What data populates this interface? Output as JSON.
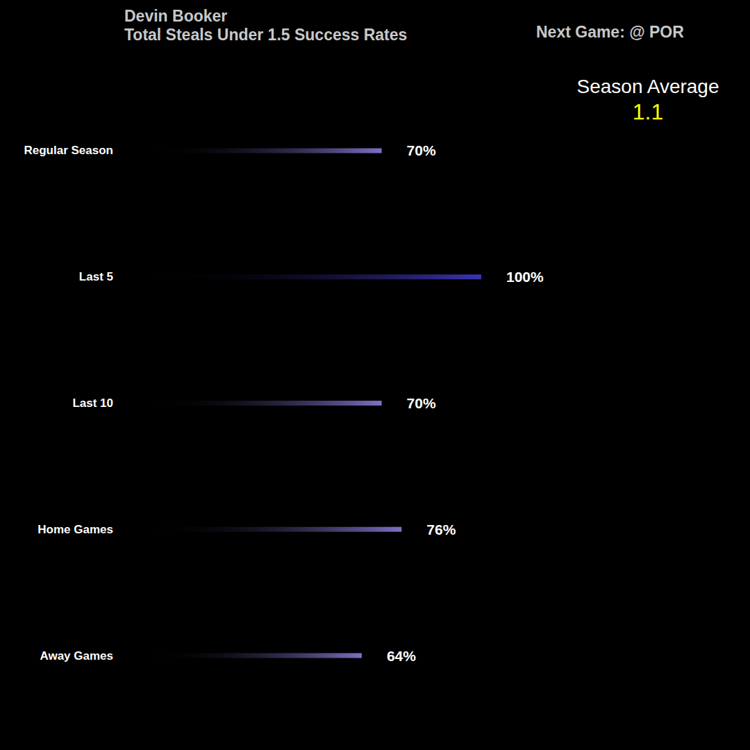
{
  "chart_data": {
    "type": "bar",
    "orientation": "horizontal",
    "title": "Devin Booker",
    "subtitle": "Total Steals Under 1.5 Success Rates",
    "annotations": [
      "Next Game: @ POR",
      "Season Average"
    ],
    "season_average": 1.1,
    "categories": [
      "Regular Season",
      "Last 5",
      "Last 10",
      "Home Games",
      "Away Games"
    ],
    "values": [
      70,
      100,
      70,
      76,
      64
    ],
    "value_labels": [
      "70%",
      "100%",
      "70%",
      "76%",
      "64%"
    ],
    "colors": [
      "#7b70c6",
      "#3c34b2",
      "#7b70c6",
      "#7b70c6",
      "#7b70c6"
    ],
    "xlim": [
      0,
      100
    ],
    "grid": false,
    "data_labels": true,
    "tick_labels": "y"
  }
}
